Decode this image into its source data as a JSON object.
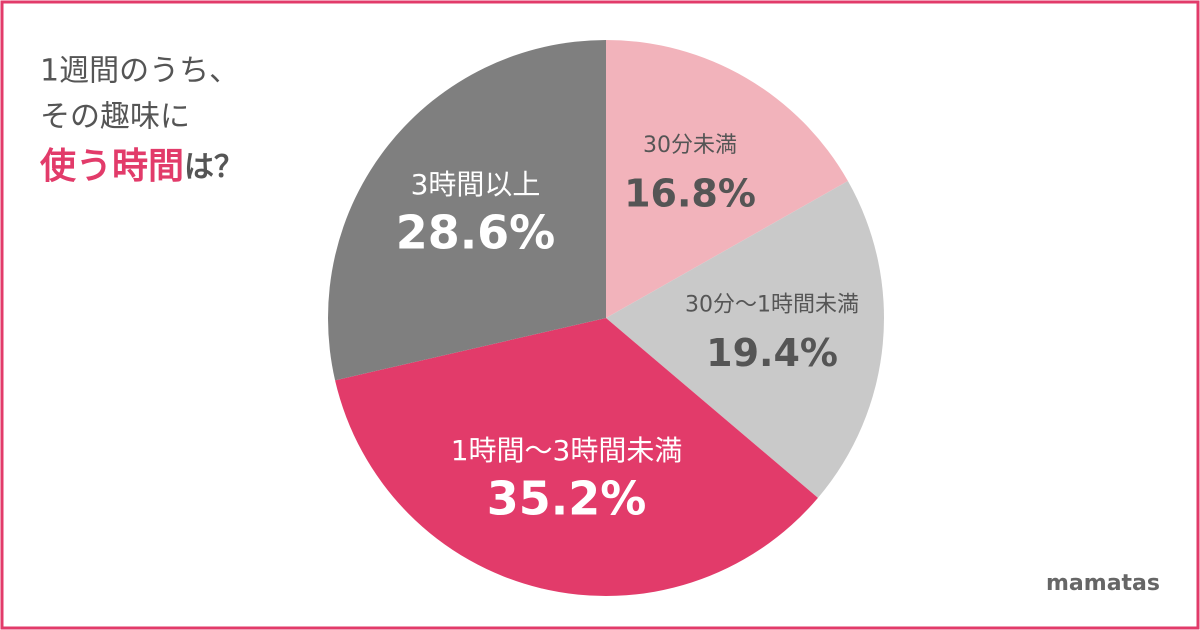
{
  "chart_data": {
    "type": "pie",
    "title": {
      "lines": [
        "1週間のうち、",
        "その趣味に"
      ],
      "highlight": "使う時間",
      "tail": "は？"
    },
    "categories": [
      "30分未満",
      "30分～1時間未満",
      "1時間～3時間未満",
      "3時間以上"
    ],
    "values": [
      16.8,
      19.4,
      35.2,
      28.6
    ],
    "value_labels": [
      "16.8%",
      "19.4%",
      "35.2%",
      "28.6%"
    ],
    "colors": [
      "#f2b3bb",
      "#c9c9c9",
      "#e23b6a",
      "#7f7f7f"
    ],
    "brand": "mamatas"
  }
}
